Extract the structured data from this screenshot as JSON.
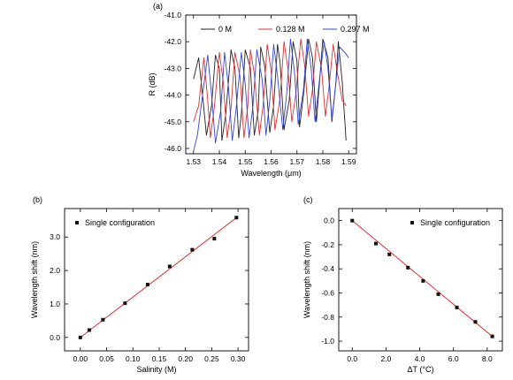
{
  "colors": {
    "axis": "#000000",
    "series_0M": "#222222",
    "series_0128M": "#e03030",
    "series_0297M": "#3344dd",
    "fit_line": "#e03030",
    "marker": "#111111"
  },
  "chart_data": [
    {
      "panel_label": "(a)",
      "type": "line",
      "title": "",
      "xlabel": "Wavelength (μm)",
      "ylabel": "R (dB)",
      "xlim": [
        1.527,
        1.593
      ],
      "ylim": [
        -46.2,
        -41.0
      ],
      "x_ticks": [
        "1.53",
        "1.54",
        "1.55",
        "1.56",
        "1.57",
        "1.58",
        "1.59"
      ],
      "x_tick_values": [
        1.53,
        1.54,
        1.55,
        1.56,
        1.57,
        1.58,
        1.59
      ],
      "y_ticks": [
        "-41.0",
        "-42.0",
        "-43.0",
        "-44.0",
        "-45.0",
        "-46.0"
      ],
      "y_tick_values": [
        -41.0,
        -42.0,
        -43.0,
        -44.0,
        -45.0,
        -46.0
      ],
      "legend_position": "top",
      "series": [
        {
          "name": "0 M",
          "x": [
            1.53,
            1.532,
            1.5335,
            1.535,
            1.537,
            1.5385,
            1.54,
            1.541,
            1.5425,
            1.5445,
            1.546,
            1.5475,
            1.5485,
            1.55,
            1.552,
            1.5535,
            1.555,
            1.556,
            1.5575,
            1.5595,
            1.561,
            1.5625,
            1.5635,
            1.565,
            1.567,
            1.5685,
            1.57,
            1.571,
            1.5725,
            1.5745,
            1.576,
            1.5775,
            1.5785,
            1.58,
            1.582,
            1.5835,
            1.585,
            1.586,
            1.5875,
            1.589
          ],
          "y": [
            -43.4,
            -42.6,
            -44.0,
            -45.5,
            -44.4,
            -42.5,
            -43.0,
            -45.7,
            -44.7,
            -42.3,
            -43.0,
            -45.6,
            -44.7,
            -42.3,
            -43.0,
            -45.5,
            -44.6,
            -42.2,
            -42.9,
            -45.4,
            -44.4,
            -42.1,
            -42.8,
            -45.3,
            -44.2,
            -42.0,
            -42.7,
            -45.2,
            -44.0,
            -41.9,
            -42.6,
            -45.0,
            -43.8,
            -41.9,
            -42.6,
            -45.0,
            -43.6,
            -42.0,
            -43.5,
            -45.7
          ]
        },
        {
          "name": "0.128 M",
          "x": [
            1.53,
            1.532,
            1.534,
            1.5355,
            1.5365,
            1.538,
            1.54,
            1.5415,
            1.543,
            1.5445,
            1.546,
            1.548,
            1.5495,
            1.551,
            1.552,
            1.5535,
            1.5555,
            1.557,
            1.5585,
            1.56,
            1.5615,
            1.5635,
            1.565,
            1.5665,
            1.568,
            1.5695,
            1.5715,
            1.573,
            1.5745,
            1.576,
            1.5775,
            1.5795,
            1.581,
            1.5825,
            1.584,
            1.5855,
            1.5875,
            1.589
          ],
          "y": [
            -45.0,
            -44.4,
            -42.6,
            -44.2,
            -45.6,
            -44.5,
            -42.4,
            -43.5,
            -45.6,
            -44.5,
            -42.4,
            -43.3,
            -45.6,
            -44.4,
            -42.3,
            -43.2,
            -45.5,
            -44.3,
            -42.1,
            -43.1,
            -45.3,
            -44.1,
            -42.0,
            -43.0,
            -45.0,
            -44.0,
            -41.9,
            -42.9,
            -44.8,
            -43.8,
            -42.0,
            -43.0,
            -44.8,
            -43.6,
            -42.1,
            -43.1,
            -44.2,
            -44.4
          ]
        },
        {
          "name": "0.297 M",
          "x": [
            1.53,
            1.5315,
            1.5335,
            1.5355,
            1.537,
            1.5385,
            1.5405,
            1.542,
            1.5435,
            1.545,
            1.5465,
            1.5485,
            1.55,
            1.5515,
            1.553,
            1.5545,
            1.5565,
            1.558,
            1.5595,
            1.561,
            1.5625,
            1.5645,
            1.566,
            1.5675,
            1.569,
            1.5705,
            1.5725,
            1.574,
            1.5755,
            1.577,
            1.5785,
            1.5805,
            1.582,
            1.5835,
            1.585,
            1.5865,
            1.5885,
            1.59
          ],
          "y": [
            -46.1,
            -45.5,
            -44.0,
            -42.5,
            -44.0,
            -45.8,
            -44.6,
            -42.4,
            -43.7,
            -45.7,
            -44.5,
            -42.4,
            -43.6,
            -45.6,
            -44.4,
            -42.3,
            -43.4,
            -45.5,
            -44.2,
            -42.1,
            -43.3,
            -45.3,
            -44.0,
            -41.9,
            -43.1,
            -45.1,
            -43.8,
            -41.9,
            -43.0,
            -45.0,
            -43.6,
            -42.0,
            -43.0,
            -44.9,
            -43.6,
            -42.2,
            -42.4,
            -42.6
          ]
        }
      ]
    },
    {
      "panel_label": "(b)",
      "type": "scatter",
      "title": "",
      "xlabel": "Salinity (M)",
      "ylabel": "Wavelength shift (nm)",
      "xlim": [
        -0.03,
        0.32
      ],
      "ylim": [
        -0.4,
        3.85
      ],
      "x_ticks": [
        "0.00",
        "0.05",
        "0.10",
        "0.15",
        "0.20",
        "0.25",
        "0.30"
      ],
      "x_tick_values": [
        0.0,
        0.05,
        0.1,
        0.15,
        0.2,
        0.25,
        0.3
      ],
      "y_ticks": [
        "0.0",
        "1.0",
        "2.0",
        "3.0"
      ],
      "y_tick_values": [
        0.0,
        1.0,
        2.0,
        3.0
      ],
      "legend_position": "top-left",
      "series": [
        {
          "name": "Single configuration",
          "x": [
            0.0,
            0.017,
            0.043,
            0.085,
            0.128,
            0.17,
            0.213,
            0.255,
            0.297
          ],
          "y": [
            0.0,
            0.22,
            0.53,
            1.02,
            1.58,
            2.12,
            2.62,
            2.95,
            3.58
          ]
        }
      ],
      "fit_line": {
        "x": [
          0.0,
          0.297
        ],
        "y": [
          0.0,
          3.58
        ]
      }
    },
    {
      "panel_label": "(c)",
      "type": "scatter",
      "title": "",
      "xlabel": "ΔT (°C)",
      "ylabel": "Wavelength shift (nm)",
      "xlim": [
        -0.8,
        8.9
      ],
      "ylim": [
        -1.08,
        0.1
      ],
      "x_ticks": [
        "0.0",
        "2.0",
        "4.0",
        "6.0",
        "8.0"
      ],
      "x_tick_values": [
        0.0,
        2.0,
        4.0,
        6.0,
        8.0
      ],
      "y_ticks": [
        "0.0",
        "-0.2",
        "-0.4",
        "-0.6",
        "-0.8",
        "-1.0"
      ],
      "y_tick_values": [
        0.0,
        -0.2,
        -0.4,
        -0.6,
        -0.8,
        -1.0
      ],
      "legend_position": "top-right",
      "series": [
        {
          "name": "Single configuration",
          "x": [
            0.0,
            1.4,
            2.2,
            3.3,
            4.2,
            5.1,
            6.2,
            7.3,
            8.3
          ],
          "y": [
            0.0,
            -0.19,
            -0.28,
            -0.39,
            -0.5,
            -0.61,
            -0.72,
            -0.84,
            -0.96
          ]
        }
      ],
      "fit_line": {
        "x": [
          0.0,
          8.3
        ],
        "y": [
          0.0,
          -0.96
        ]
      }
    }
  ]
}
